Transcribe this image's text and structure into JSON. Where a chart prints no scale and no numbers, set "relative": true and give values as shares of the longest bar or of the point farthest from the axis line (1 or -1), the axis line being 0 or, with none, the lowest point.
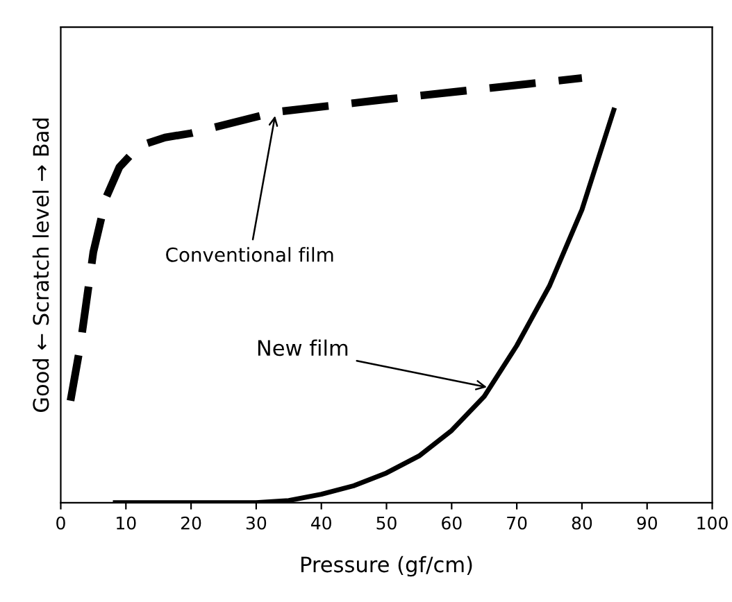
{
  "chart_data": {
    "type": "line",
    "xlabel": "Pressure (gf/cm)",
    "ylabel": "Good ← Scratch level → Bad",
    "relative": true,
    "xlim": [
      0,
      100
    ],
    "xticks": [
      0,
      10,
      20,
      30,
      40,
      50,
      60,
      70,
      80,
      90,
      100
    ],
    "grid": false,
    "legend": false,
    "marker": "none",
    "series": [
      {
        "color": "#000000",
        "line_style": "dashed",
        "x": [
          1.5,
          3,
          5,
          7,
          9,
          12,
          16,
          20,
          33,
          50,
          80
        ],
        "values": [
          0.24,
          0.37,
          0.59,
          0.72,
          0.79,
          0.84,
          0.86,
          0.87,
          0.92,
          0.95,
          1.0
        ]
      },
      {
        "color": "#000000",
        "line_style": "solid",
        "x": [
          8,
          20,
          30,
          35,
          40,
          45,
          50,
          55,
          60,
          65,
          70,
          75,
          80,
          85
        ],
        "values": [
          0,
          0,
          0,
          0.005,
          0.02,
          0.04,
          0.07,
          0.11,
          0.17,
          0.25,
          0.37,
          0.51,
          0.69,
          0.93
        ]
      }
    ],
    "annotations": [
      {
        "text": "Conventional film",
        "x": 33,
        "y": 0.92
      },
      {
        "text": "New film",
        "x": 66,
        "y": 0.27
      }
    ]
  }
}
